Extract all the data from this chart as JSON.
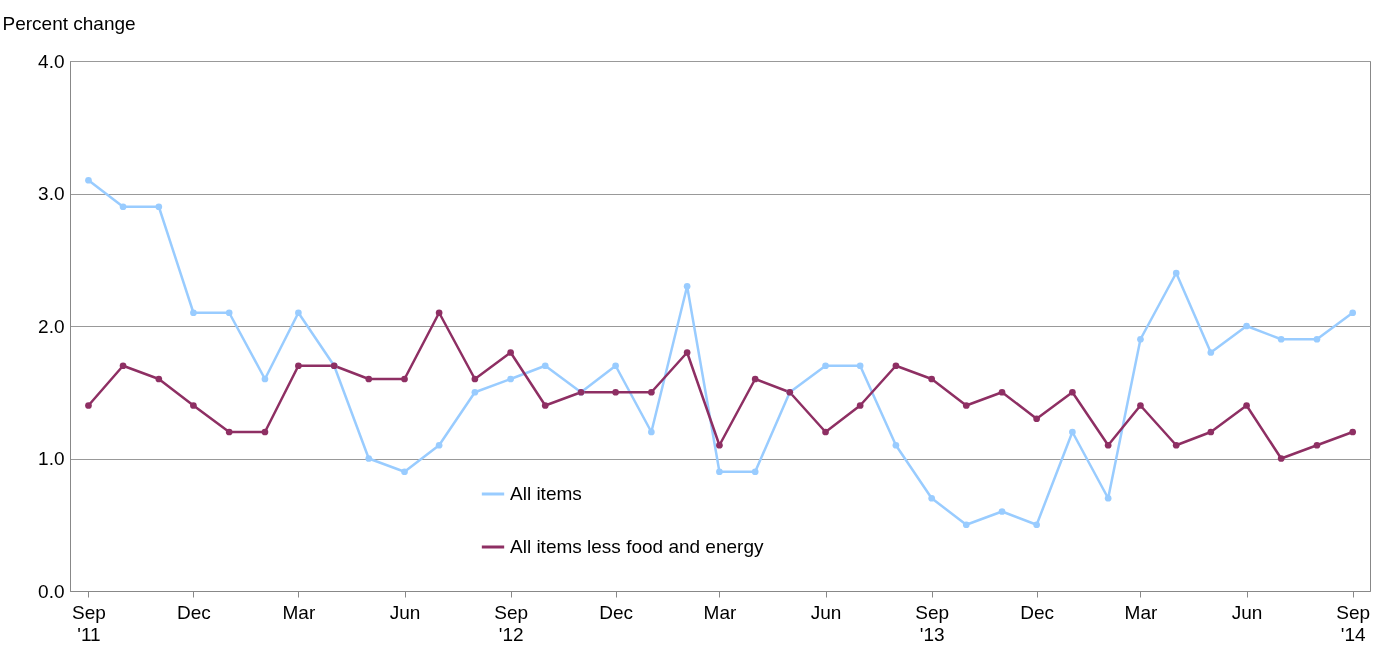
{
  "chart_data": {
    "type": "line",
    "ylabel": "Percent change",
    "x": [
      "2011-09",
      "2011-10",
      "2011-11",
      "2011-12",
      "2012-01",
      "2012-02",
      "2012-03",
      "2012-04",
      "2012-05",
      "2012-06",
      "2012-07",
      "2012-08",
      "2012-09",
      "2012-10",
      "2012-11",
      "2012-12",
      "2013-01",
      "2013-02",
      "2013-03",
      "2013-04",
      "2013-05",
      "2013-06",
      "2013-07",
      "2013-08",
      "2013-09",
      "2013-10",
      "2013-11",
      "2013-12",
      "2014-01",
      "2014-02",
      "2014-03",
      "2014-04",
      "2014-05",
      "2014-06",
      "2014-07",
      "2014-08",
      "2014-09"
    ],
    "series": [
      {
        "name": "All items",
        "color": "#99ccff",
        "values": [
          3.1,
          2.9,
          2.9,
          2.1,
          2.1,
          1.6,
          2.1,
          1.7,
          1.0,
          0.9,
          1.1,
          1.5,
          1.6,
          1.7,
          1.5,
          1.7,
          1.2,
          2.3,
          0.9,
          0.9,
          1.5,
          1.7,
          1.7,
          1.1,
          0.7,
          0.5,
          0.6,
          0.5,
          1.2,
          0.7,
          1.9,
          2.4,
          1.8,
          2.0,
          1.9,
          1.9,
          2.1
        ]
      },
      {
        "name": "All items less food and energy",
        "color": "#8e2f63",
        "values": [
          1.4,
          1.7,
          1.6,
          1.4,
          1.2,
          1.2,
          1.7,
          1.7,
          1.6,
          1.6,
          2.1,
          1.6,
          1.8,
          1.4,
          1.5,
          1.5,
          1.5,
          1.8,
          1.1,
          1.6,
          1.5,
          1.2,
          1.4,
          1.7,
          1.6,
          1.4,
          1.5,
          1.3,
          1.5,
          1.1,
          1.4,
          1.1,
          1.2,
          1.4,
          1.0,
          1.1,
          1.2
        ]
      }
    ],
    "xlim": [
      "2011-08-16",
      "2014-09-16"
    ],
    "xticks": [
      {
        "value": "2011-09",
        "label": "Sep\n'11"
      },
      {
        "value": "2011-12",
        "label": "Dec"
      },
      {
        "value": "2012-03",
        "label": "Mar"
      },
      {
        "value": "2012-06",
        "label": "Jun"
      },
      {
        "value": "2012-09",
        "label": "Sep\n'12"
      },
      {
        "value": "2012-12",
        "label": "Dec"
      },
      {
        "value": "2013-03",
        "label": "Mar"
      },
      {
        "value": "2013-06",
        "label": "Jun"
      },
      {
        "value": "2013-09",
        "label": "Sep\n'13"
      },
      {
        "value": "2013-12",
        "label": "Dec"
      },
      {
        "value": "2014-03",
        "label": "Mar"
      },
      {
        "value": "2014-06",
        "label": "Jun"
      },
      {
        "value": "2014-09",
        "label": "Sep\n'14"
      }
    ],
    "ylim": [
      0,
      4
    ],
    "yticks": [
      {
        "value": 0,
        "label": "0.0"
      },
      {
        "value": 1,
        "label": "1.0"
      },
      {
        "value": 2,
        "label": "2.0"
      },
      {
        "value": 3,
        "label": "3.0"
      },
      {
        "value": 4,
        "label": "4.0"
      }
    ],
    "grid": "y",
    "legend": "bottom",
    "marker": "circle",
    "line_style": "solid"
  }
}
